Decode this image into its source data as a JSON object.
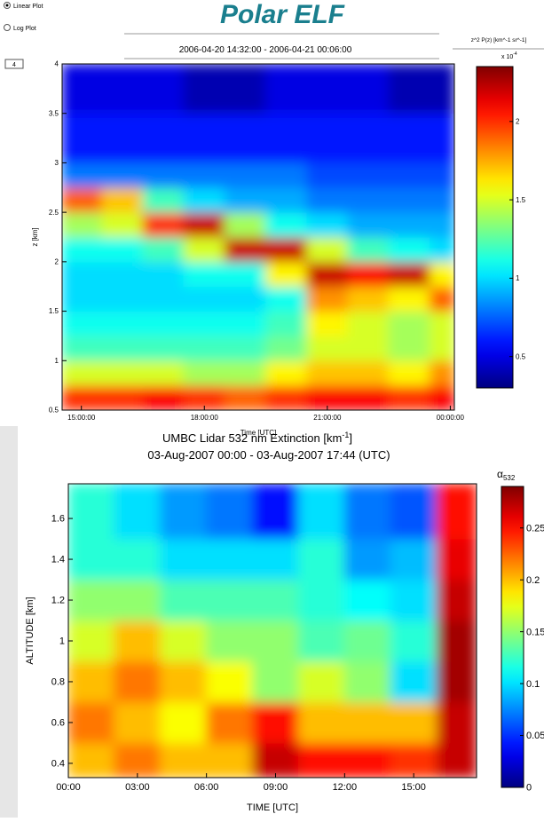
{
  "header_title": "Polar ELF",
  "controls": {
    "options": [
      "Linear Plot",
      "Log Plot"
    ],
    "field": "4"
  },
  "chart_data": [
    {
      "type": "heatmap",
      "subtitle": "2006-04-20 14:32:00  -  2006-04-21 00:06:00",
      "xlabel": "Time [UTC]",
      "ylabel": "z [km]",
      "cbar_label": "z^2 P(z) [km^-1 sr^-1]",
      "cbar_scale": "x 10",
      "cbar_scale_exp": "-4",
      "colormap": "jet",
      "xlim": [
        14.53,
        24.1
      ],
      "ylim": [
        0.5,
        4
      ],
      "xticks": [
        {
          "value": 15,
          "label": "15:00:00"
        },
        {
          "value": 18,
          "label": "18:00:00"
        },
        {
          "value": 21,
          "label": "21:00:00"
        },
        {
          "value": 24,
          "label": "00:00:00"
        }
      ],
      "yticks": [
        0.5,
        1,
        1.5,
        2,
        2.5,
        3,
        3.5,
        4
      ],
      "clim": [
        0.3,
        2.35
      ],
      "cticks": [
        0.5,
        1,
        1.5,
        2
      ],
      "xbins": [
        14.53,
        15.5,
        16.5,
        17.5,
        18.5,
        19.5,
        20.5,
        21.5,
        22.5,
        23.5,
        24.1
      ],
      "ybins": [
        0.5,
        0.75,
        1,
        1.25,
        1.5,
        1.75,
        2,
        2.25,
        2.5,
        2.75,
        3,
        3.5,
        4
      ],
      "z": [
        [
          2.0,
          2.0,
          2.1,
          2.0,
          1.9,
          2.0,
          2.1,
          2.1,
          2.0,
          2.1
        ],
        [
          1.5,
          1.5,
          1.5,
          1.4,
          1.4,
          1.6,
          1.7,
          1.7,
          1.6,
          1.8
        ],
        [
          1.2,
          1.2,
          1.2,
          1.2,
          1.2,
          1.3,
          1.5,
          1.5,
          1.4,
          1.5
        ],
        [
          1.1,
          1.1,
          1.1,
          1.1,
          1.1,
          1.2,
          1.6,
          1.5,
          1.4,
          1.5
        ],
        [
          1.0,
          1.0,
          1.0,
          1.0,
          1.0,
          1.1,
          1.8,
          1.7,
          1.6,
          1.9
        ],
        [
          1.0,
          1.0,
          1.0,
          1.1,
          1.1,
          1.6,
          2.2,
          2.1,
          2.2,
          1.6
        ],
        [
          1.1,
          1.1,
          1.2,
          1.5,
          2.2,
          2.2,
          1.5,
          1.2,
          1.1,
          1.0
        ],
        [
          1.4,
          1.5,
          2.0,
          2.2,
          1.4,
          1.1,
          1.0,
          0.9,
          0.9,
          0.9
        ],
        [
          1.9,
          1.7,
          1.2,
          1.0,
          0.9,
          0.9,
          0.8,
          0.8,
          0.8,
          0.8
        ],
        [
          0.8,
          0.8,
          0.8,
          0.8,
          0.8,
          0.8,
          0.7,
          0.7,
          0.7,
          0.7
        ],
        [
          0.6,
          0.6,
          0.6,
          0.6,
          0.6,
          0.6,
          0.6,
          0.6,
          0.6,
          0.6
        ],
        [
          0.5,
          0.5,
          0.5,
          0.4,
          0.4,
          0.5,
          0.5,
          0.5,
          0.4,
          0.4
        ]
      ]
    },
    {
      "type": "heatmap",
      "title": "UMBC Lidar 532 nm Extinction [km",
      "title_exp": "-1",
      "title_end": "]",
      "subtitle": "03-Aug-2007 00:00 - 03-Aug-2007 17:44 (UTC)",
      "xlabel": "TIME [UTC]",
      "ylabel": "ALTITUDE [km]",
      "cbar_label": "α",
      "cbar_label_sub": "532",
      "colormap": "jet",
      "xlim": [
        0,
        17.73
      ],
      "ylim": [
        0.33,
        1.77
      ],
      "xticks": [
        {
          "value": 0,
          "label": "00:00"
        },
        {
          "value": 3,
          "label": "03:00"
        },
        {
          "value": 6,
          "label": "06:00"
        },
        {
          "value": 9,
          "label": "09:00"
        },
        {
          "value": 12,
          "label": "12:00"
        },
        {
          "value": 15,
          "label": "15:00"
        }
      ],
      "yticks": [
        0.4,
        0.6,
        0.8,
        1,
        1.2,
        1.4,
        1.6
      ],
      "clim": [
        0,
        0.29
      ],
      "cticks": [
        0,
        0.05,
        0.1,
        0.15,
        0.2,
        0.25
      ],
      "xbins": [
        0,
        2,
        4,
        6,
        8,
        10,
        12,
        14,
        16,
        17.73
      ],
      "ybins": [
        0.33,
        0.5,
        0.7,
        0.9,
        1.1,
        1.3,
        1.5,
        1.77
      ],
      "z": [
        [
          0.2,
          0.22,
          0.2,
          0.2,
          0.27,
          0.25,
          0.25,
          0.24,
          0.27
        ],
        [
          0.22,
          0.2,
          0.18,
          0.22,
          0.25,
          0.2,
          0.2,
          0.2,
          0.27
        ],
        [
          0.2,
          0.22,
          0.2,
          0.18,
          0.15,
          0.17,
          0.15,
          0.1,
          0.28
        ],
        [
          0.17,
          0.2,
          0.17,
          0.15,
          0.15,
          0.13,
          0.14,
          0.12,
          0.28
        ],
        [
          0.15,
          0.15,
          0.13,
          0.13,
          0.13,
          0.12,
          0.11,
          0.1,
          0.27
        ],
        [
          0.12,
          0.12,
          0.1,
          0.1,
          0.1,
          0.12,
          0.08,
          0.09,
          0.26
        ],
        [
          0.12,
          0.1,
          0.08,
          0.07,
          0.04,
          0.1,
          0.07,
          0.06,
          0.25
        ]
      ]
    }
  ]
}
